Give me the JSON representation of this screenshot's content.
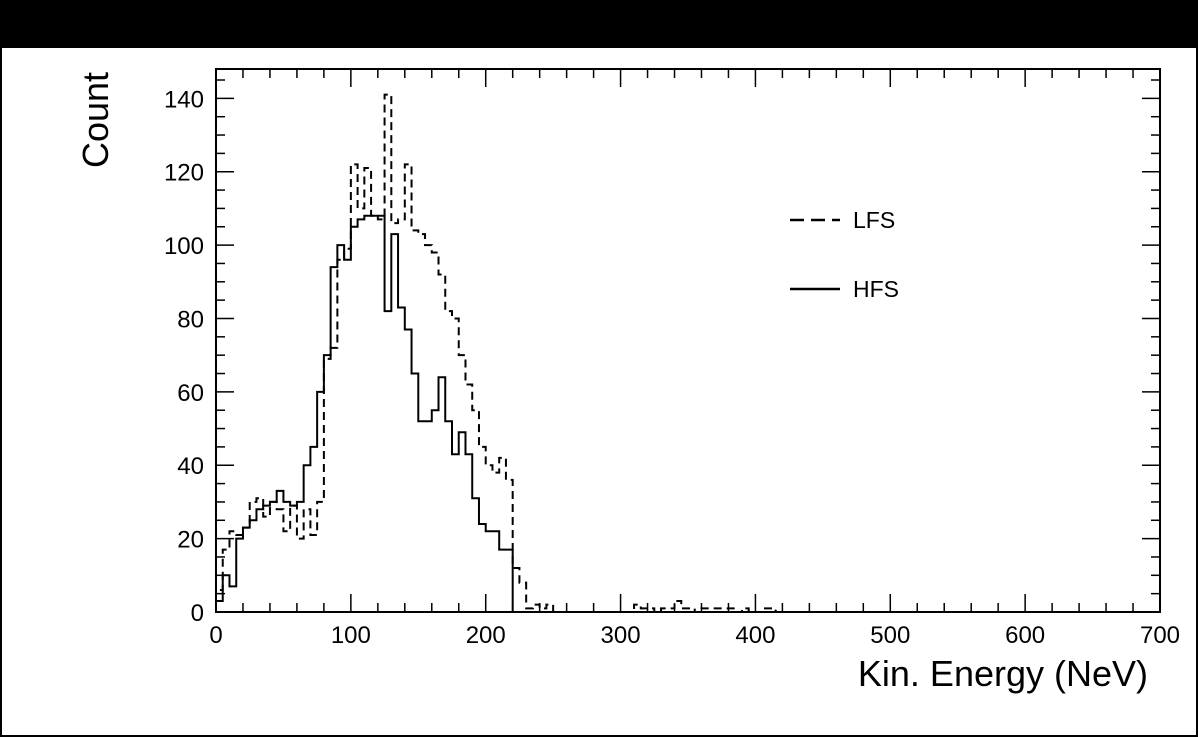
{
  "chart_data": {
    "type": "line",
    "style": "step-histogram",
    "xlabel": "Kin. Energy (NeV)",
    "ylabel": "Count",
    "xlim": [
      0,
      700
    ],
    "ylim": [
      0,
      148
    ],
    "xticks": [
      0,
      100,
      200,
      300,
      400,
      500,
      600,
      700
    ],
    "xtick_labels": [
      "0",
      "100",
      "200",
      "300",
      "400",
      "500",
      "600",
      "700"
    ],
    "yticks": [
      0,
      20,
      40,
      60,
      80,
      100,
      120,
      140
    ],
    "ytick_labels": [
      "0",
      "20",
      "40",
      "60",
      "80",
      "100",
      "120",
      "140"
    ],
    "bin_width": 5,
    "bin_start": 0,
    "legend_position": "upper-right",
    "grid": false,
    "series": [
      {
        "name": "LFS",
        "line_style": "dashed",
        "color": "#000000",
        "values": [
          6,
          17,
          22,
          21,
          23,
          30,
          31,
          26,
          30,
          28,
          22,
          29,
          20,
          28,
          21,
          30,
          69,
          72,
          96,
          99,
          122,
          110,
          121,
          108,
          107,
          141,
          106,
          107,
          122,
          104,
          103,
          100,
          98,
          92,
          82,
          80,
          70,
          62,
          55,
          45,
          40,
          38,
          42,
          36,
          12,
          8,
          1,
          2,
          1,
          2,
          0,
          0,
          0,
          0,
          0,
          0,
          0,
          0,
          0,
          0,
          0,
          0,
          2,
          1,
          1,
          0,
          1,
          1,
          3,
          1,
          1,
          0,
          1,
          1,
          1,
          1,
          1,
          0,
          1,
          0,
          0,
          1,
          1,
          0,
          0,
          0,
          0,
          0,
          0,
          0,
          0,
          0,
          0,
          0,
          0,
          0,
          0,
          0,
          0,
          0,
          0,
          0,
          0,
          0,
          0,
          0,
          0,
          0,
          0,
          0,
          0,
          0,
          0,
          0,
          0,
          0,
          0,
          0,
          0,
          0,
          0,
          0,
          0,
          0,
          0,
          0,
          0,
          0,
          0,
          0,
          0,
          0,
          0,
          0,
          0,
          0,
          0,
          0,
          0,
          0
        ]
      },
      {
        "name": "HFS",
        "line_style": "solid",
        "color": "#000000",
        "values": [
          3,
          10,
          7,
          20,
          23,
          25,
          28,
          29,
          30,
          33,
          30,
          29,
          30,
          40,
          45,
          60,
          70,
          94,
          100,
          96,
          105,
          107,
          108,
          108,
          108,
          82,
          103,
          83,
          77,
          65,
          52,
          52,
          55,
          64,
          52,
          43,
          49,
          43,
          31,
          24,
          22,
          22,
          17,
          17,
          0,
          0,
          0,
          0,
          0,
          0,
          0,
          0,
          0,
          0,
          0,
          0,
          0,
          0,
          0,
          0,
          0,
          0,
          0,
          0,
          0,
          0,
          0,
          0,
          0,
          0,
          0,
          0,
          0,
          0,
          0,
          0,
          0,
          0,
          0,
          0,
          0,
          0,
          0,
          0,
          0,
          0,
          0,
          0,
          0,
          0,
          0,
          0,
          0,
          0,
          0,
          0,
          0,
          0,
          0,
          0,
          0,
          0,
          0,
          0,
          0,
          0,
          0,
          0,
          0,
          0,
          0,
          0,
          0,
          0,
          0,
          0,
          0,
          0,
          0,
          0,
          0,
          0,
          0,
          0,
          0,
          0,
          0,
          0,
          0,
          0,
          0,
          0,
          0,
          0,
          0,
          0,
          0,
          0,
          0,
          0
        ]
      }
    ]
  }
}
